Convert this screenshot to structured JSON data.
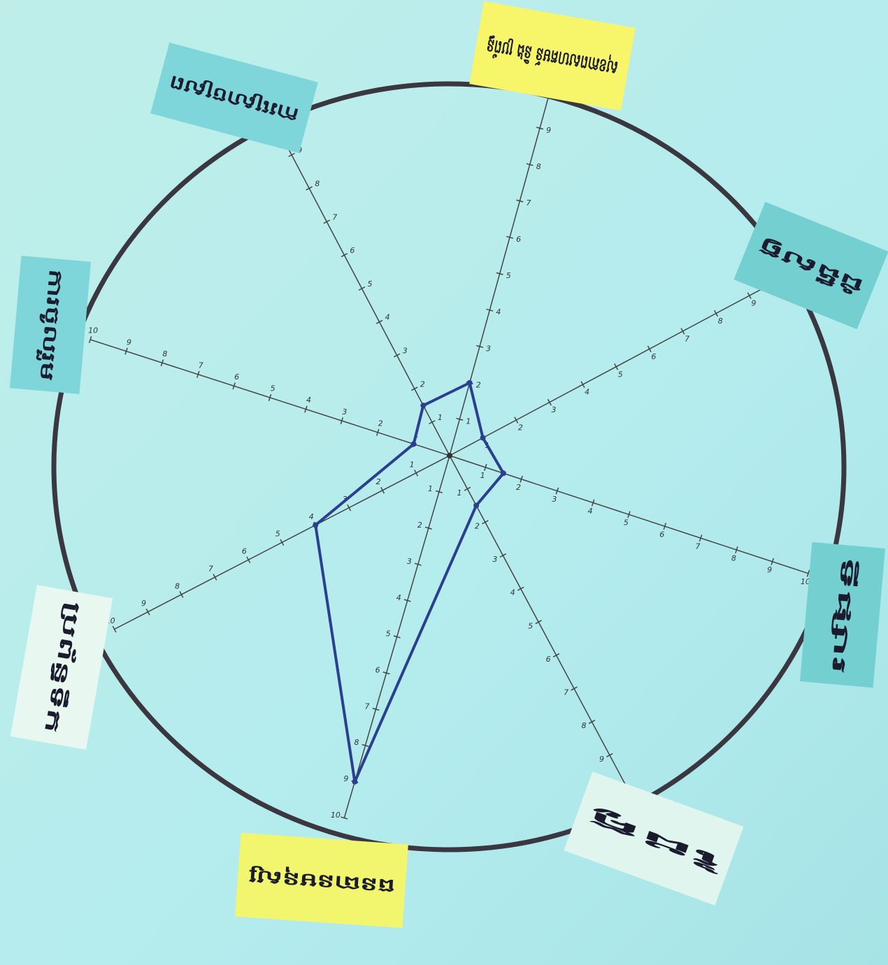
{
  "chart_data": {
    "type": "radar",
    "categories": [
      "សុខភាពសហគមន៍ និង ប្រព័ន្ធ",
      "ជំងឺសត្វ",
      "ទីផ្សារ",
      "ដៃគូ",
      "ធនធានមនុស្ស",
      "ប្រព័ន្ធទឹក",
      "ការចូលរួម",
      "ការស្រោចស្រព"
    ],
    "values": [
      2,
      1,
      1.5,
      1.5,
      9,
      4,
      1,
      1.5
    ],
    "color": "#2b3f8f",
    "rlim": [
      0,
      10
    ],
    "rticks": [
      1,
      2,
      3,
      4,
      5,
      6,
      7,
      8,
      9,
      10
    ]
  }
}
